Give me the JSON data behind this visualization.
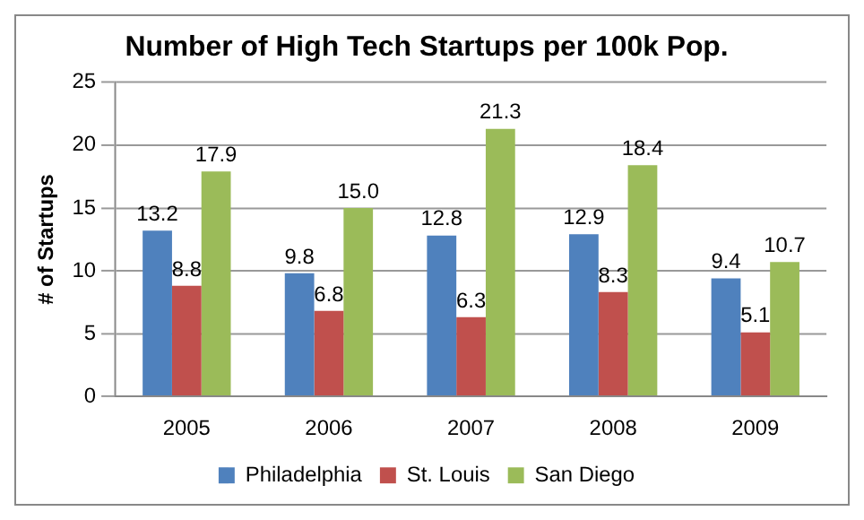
{
  "chart_data": {
    "type": "bar",
    "title": "Number of High Tech Startups per 100k Pop.",
    "ylabel": "# of Startups",
    "categories": [
      "2005",
      "2006",
      "2007",
      "2008",
      "2009"
    ],
    "series": [
      {
        "name": "Philadelphia",
        "color": "#4f81bd",
        "values": [
          13.2,
          9.8,
          12.8,
          12.9,
          9.4
        ],
        "value_labels": [
          "13.2",
          "9.8",
          "12.8",
          "12.9",
          "9.4"
        ]
      },
      {
        "name": "St. Louis",
        "color": "#c0504d",
        "values": [
          8.8,
          6.8,
          6.3,
          8.3,
          5.1
        ],
        "value_labels": [
          "8.8",
          "6.8",
          "6.3",
          "8.3",
          "5.1"
        ]
      },
      {
        "name": "San Diego",
        "color": "#9bbb59",
        "values": [
          17.9,
          15.0,
          21.3,
          18.4,
          10.7
        ],
        "value_labels": [
          "17.9",
          "15.0",
          "21.3",
          "18.4",
          "10.7"
        ]
      }
    ],
    "ylim": [
      0,
      25
    ],
    "yticks": [
      0,
      5,
      10,
      15,
      20,
      25
    ],
    "grid": "y",
    "legend": "bottom"
  }
}
